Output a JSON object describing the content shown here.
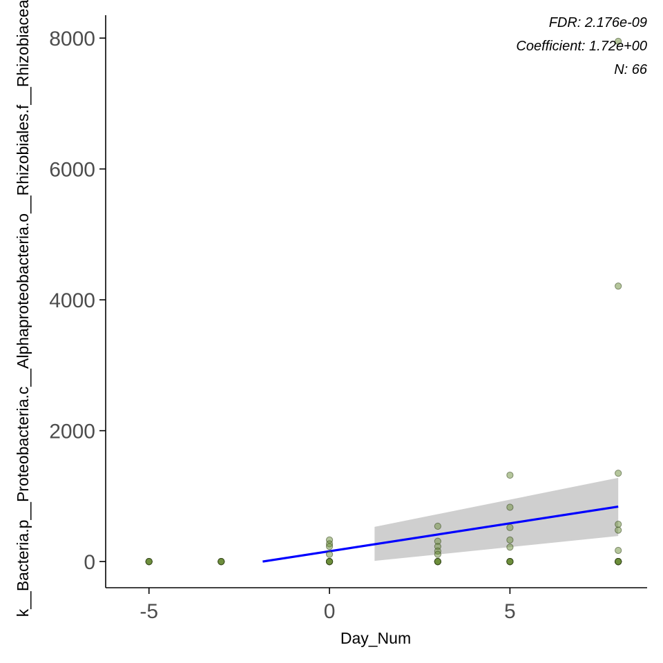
{
  "chart_data": {
    "type": "scatter",
    "xlabel": "Day_Num",
    "ylabel": "k__Bacteria.p__Proteobacteria.c__Alphaproteobacteria.o__Rhizobiales.f__Rhizobiaceae",
    "xlim": [
      -6.2,
      8.8
    ],
    "ylim": [
      -400,
      8350
    ],
    "x_ticks": [
      -5,
      0,
      5
    ],
    "x_tick_labels": [
      "-5",
      "0",
      "5"
    ],
    "y_ticks": [
      0,
      2000,
      4000,
      6000,
      8000
    ],
    "y_tick_labels": [
      "0",
      "2000",
      "4000",
      "6000",
      "8000"
    ],
    "grid": false,
    "annotations": [
      "FDR: 2.176e-09",
      "Coefficient: 1.72e+00",
      "N: 66"
    ],
    "points": [
      {
        "x": -5,
        "y": 0
      },
      {
        "x": -5,
        "y": 0
      },
      {
        "x": -5,
        "y": 0
      },
      {
        "x": -5,
        "y": 0
      },
      {
        "x": -5,
        "y": 0
      },
      {
        "x": -5,
        "y": 0
      },
      {
        "x": -3,
        "y": 0
      },
      {
        "x": -3,
        "y": 0
      },
      {
        "x": -3,
        "y": 0
      },
      {
        "x": -3,
        "y": 0
      },
      {
        "x": -3,
        "y": 0
      },
      {
        "x": -3,
        "y": 0
      },
      {
        "x": 0,
        "y": 330
      },
      {
        "x": 0,
        "y": 270
      },
      {
        "x": 0,
        "y": 230
      },
      {
        "x": 0,
        "y": 110
      },
      {
        "x": 0,
        "y": 0
      },
      {
        "x": 0,
        "y": 0
      },
      {
        "x": 0,
        "y": 0
      },
      {
        "x": 0,
        "y": 0
      },
      {
        "x": 0,
        "y": 0
      },
      {
        "x": 0,
        "y": 0
      },
      {
        "x": 0,
        "y": 0
      },
      {
        "x": 0,
        "y": 0
      },
      {
        "x": 3,
        "y": 540
      },
      {
        "x": 3,
        "y": 310
      },
      {
        "x": 3,
        "y": 230
      },
      {
        "x": 3,
        "y": 160
      },
      {
        "x": 3,
        "y": 110
      },
      {
        "x": 3,
        "y": 0
      },
      {
        "x": 3,
        "y": 0
      },
      {
        "x": 3,
        "y": 0
      },
      {
        "x": 3,
        "y": 0
      },
      {
        "x": 3,
        "y": 0
      },
      {
        "x": 3,
        "y": 0
      },
      {
        "x": 3,
        "y": 0
      },
      {
        "x": 5,
        "y": 1320
      },
      {
        "x": 5,
        "y": 830
      },
      {
        "x": 5,
        "y": 520
      },
      {
        "x": 5,
        "y": 330
      },
      {
        "x": 5,
        "y": 220
      },
      {
        "x": 5,
        "y": 0
      },
      {
        "x": 5,
        "y": 0
      },
      {
        "x": 5,
        "y": 0
      },
      {
        "x": 5,
        "y": 0
      },
      {
        "x": 5,
        "y": 0
      },
      {
        "x": 5,
        "y": 0
      },
      {
        "x": 5,
        "y": 0
      },
      {
        "x": 8,
        "y": 7950
      },
      {
        "x": 8,
        "y": 4210
      },
      {
        "x": 8,
        "y": 1350
      },
      {
        "x": 8,
        "y": 570
      },
      {
        "x": 8,
        "y": 480
      },
      {
        "x": 8,
        "y": 170
      },
      {
        "x": 8,
        "y": 0
      },
      {
        "x": 8,
        "y": 0
      },
      {
        "x": 8,
        "y": 0
      },
      {
        "x": 8,
        "y": 0
      },
      {
        "x": 8,
        "y": 0
      },
      {
        "x": 8,
        "y": 0
      },
      {
        "x": 8,
        "y": 0
      },
      {
        "x": 8,
        "y": 0
      },
      {
        "x": 8,
        "y": 0
      },
      {
        "x": 8,
        "y": 0
      },
      {
        "x": 8,
        "y": 0
      },
      {
        "x": 8,
        "y": 0
      }
    ],
    "fit_line": {
      "x": [
        -1.85,
        8
      ],
      "y": [
        0,
        840
      ]
    },
    "confidence_band": {
      "x": [
        1.25,
        8
      ],
      "upper": [
        530,
        1280
      ],
      "lower": [
        10,
        390
      ]
    },
    "colors": {
      "point_fill": "#6b8e3a",
      "point_stroke": "#2f3f17",
      "fit_line": "#0000ff",
      "band": "#cfcfcf",
      "axis": "#000000",
      "tick_label": "#4d4d4d"
    }
  }
}
